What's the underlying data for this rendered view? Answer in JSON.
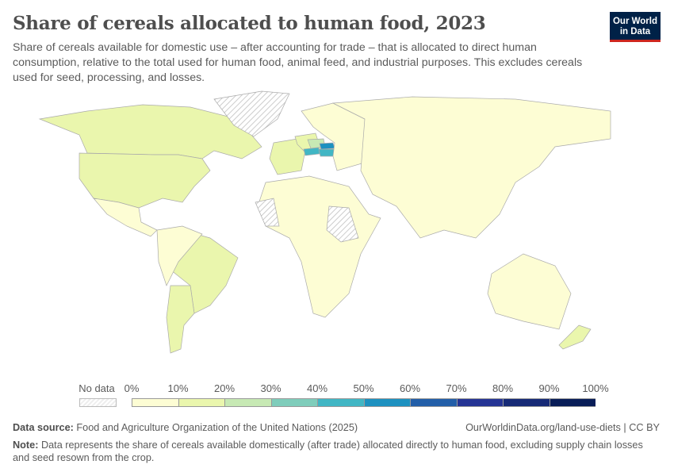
{
  "header": {
    "title": "Share of cereals allocated to human food, 2023",
    "subtitle": "Share of cereals available for domestic use – after accounting for trade – that is allocated to direct human consumption, relative to the total used for human food, animal feed, and industrial purposes. This excludes cereals used for seed, processing, and losses.",
    "logo": "Our World in Data"
  },
  "chart_data": {
    "type": "choropleth",
    "year": 2023,
    "unit": "%",
    "legend": {
      "no_data_label": "No data",
      "ticks": [
        "0%",
        "10%",
        "20%",
        "30%",
        "40%",
        "50%",
        "60%",
        "70%",
        "80%",
        "90%",
        "100%"
      ],
      "colors": [
        "#fdfdd4",
        "#eaf6ad",
        "#c7e9b4",
        "#7fcdbb",
        "#41b6c4",
        "#1d91c0",
        "#225ea8",
        "#253494",
        "#162a76",
        "#081d58"
      ]
    },
    "regions": [
      {
        "name": "Canada",
        "bin": "10-20%"
      },
      {
        "name": "United States",
        "bin": "10-20%"
      },
      {
        "name": "Greenland",
        "bin": "No data"
      },
      {
        "name": "Mexico",
        "bin": "0-10%"
      },
      {
        "name": "Brazil",
        "bin": "10-20%"
      },
      {
        "name": "Argentina",
        "bin": "10-20%"
      },
      {
        "name": "Rest of South America",
        "bin": "0-10%"
      },
      {
        "name": "Western Europe",
        "bin": "10-20%"
      },
      {
        "name": "Germany",
        "bin": "10-20%"
      },
      {
        "name": "Czechia",
        "bin": "20-30%"
      },
      {
        "name": "Austria",
        "bin": "40-50%"
      },
      {
        "name": "Hungary",
        "bin": "40-50%"
      },
      {
        "name": "Slovakia",
        "bin": "50-60%"
      },
      {
        "name": "Eastern Europe",
        "bin": "0-10%"
      },
      {
        "name": "Africa",
        "bin": "0-10%"
      },
      {
        "name": "Sahara/Horn (no data)",
        "bin": "No data"
      },
      {
        "name": "Russia & Asia",
        "bin": "0-10%"
      },
      {
        "name": "Australia",
        "bin": "0-10%"
      },
      {
        "name": "New Zealand",
        "bin": "10-20%"
      }
    ]
  },
  "footer": {
    "source_label": "Data source:",
    "source": "Food and Agriculture Organization of the United Nations (2025)",
    "url": "OurWorldinData.org/land-use-diets | CC BY",
    "note_label": "Note:",
    "note": "Data represents the share of cereals available domestically (after trade) allocated directly to human food, excluding supply chain losses and seed resown from the crop."
  }
}
